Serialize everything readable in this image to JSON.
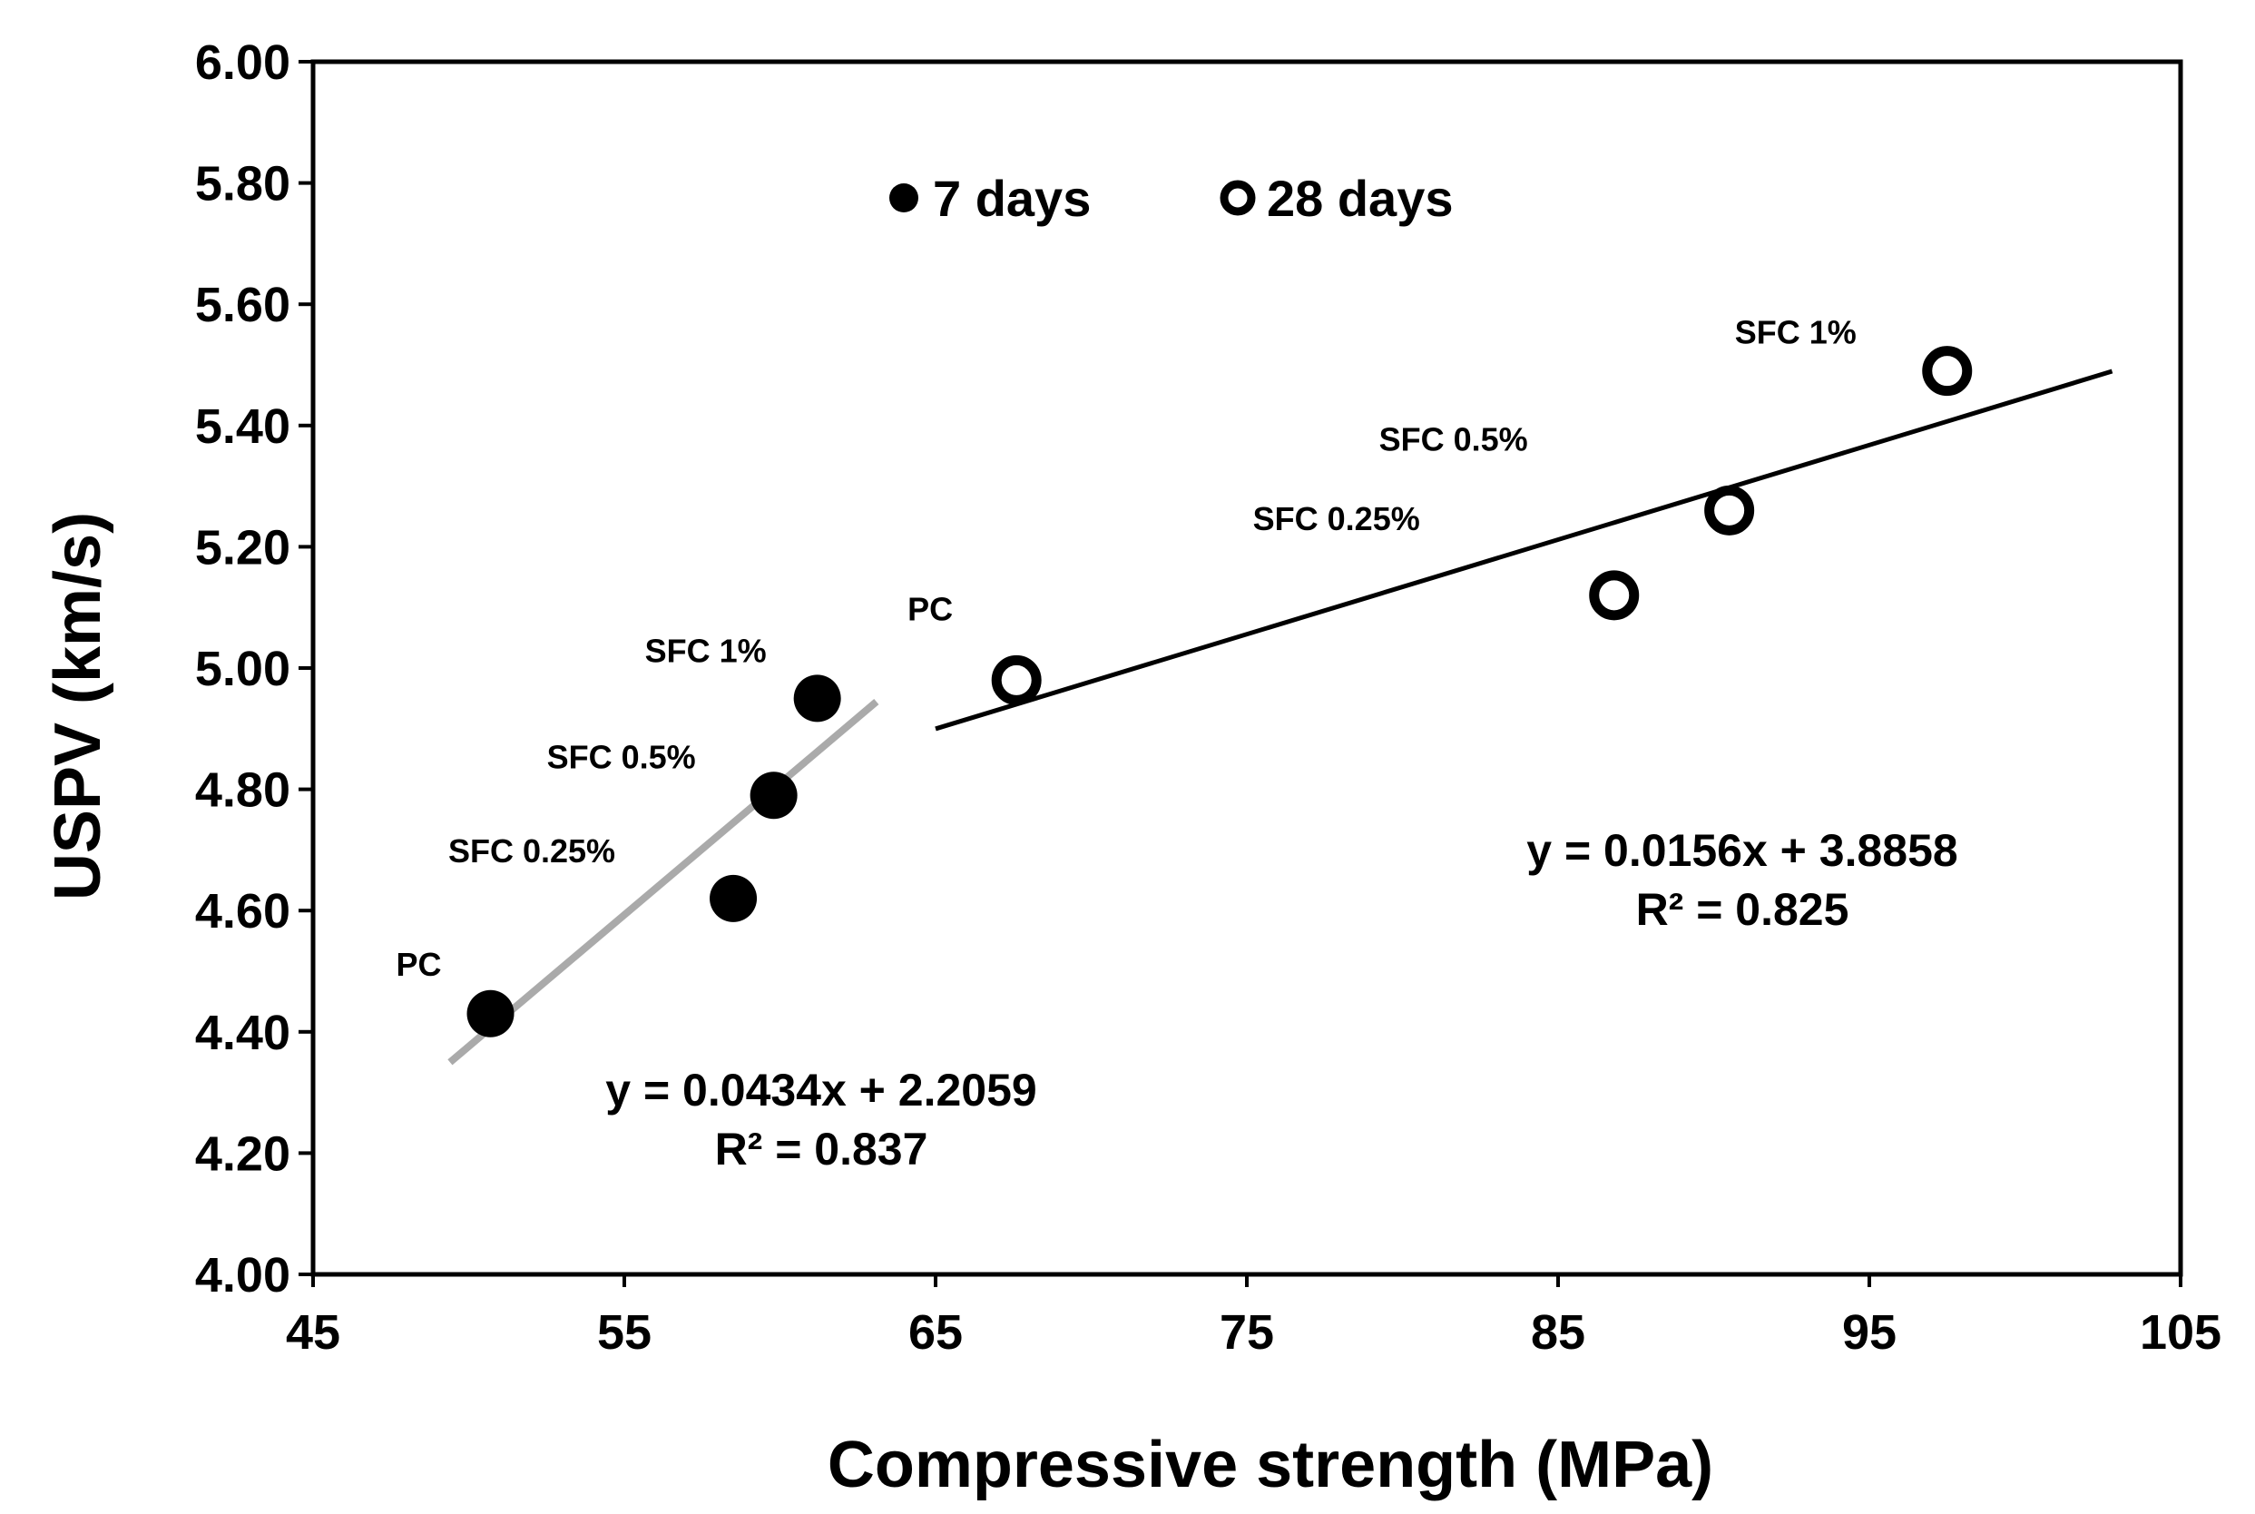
{
  "chart_data": {
    "type": "scatter",
    "title": "",
    "xlabel": "Compressive strength (MPa)",
    "ylabel": "USPV (km/s)",
    "xlim": [
      45,
      105
    ],
    "ylim": [
      4.0,
      6.0
    ],
    "xticks": [
      45,
      55,
      65,
      75,
      85,
      95,
      105
    ],
    "xtick_labels": [
      "45",
      "55",
      "65",
      "75",
      "85",
      "95",
      "105"
    ],
    "yticks": [
      4.0,
      4.2,
      4.4,
      4.6,
      4.8,
      5.0,
      5.2,
      5.4,
      5.6,
      5.8,
      6.0
    ],
    "ytick_labels": [
      "4.00",
      "4.20",
      "4.40",
      "4.60",
      "4.80",
      "5.00",
      "5.20",
      "5.40",
      "5.60",
      "5.80",
      "6.00"
    ],
    "grid": false,
    "legend_position": "top-center",
    "series": [
      {
        "name": "7 days",
        "marker": "filled-circle",
        "color": "#000000",
        "points": [
          {
            "x": 50.7,
            "y": 4.43,
            "label": "PC"
          },
          {
            "x": 58.5,
            "y": 4.62,
            "label": "SFC 0.25%"
          },
          {
            "x": 59.8,
            "y": 4.79,
            "label": "SFC 0.5%"
          },
          {
            "x": 61.2,
            "y": 4.95,
            "label": "SFC 1%"
          }
        ],
        "trendline": {
          "slope": 0.0434,
          "intercept": 2.2059,
          "x_range": [
            49.4,
            63.1
          ],
          "color": "#aaaaaa",
          "equation": "y = 0.0434x + 2.2059",
          "r2": "R² = 0.837"
        }
      },
      {
        "name": "28 days",
        "marker": "hollow-circle",
        "color": "#000000",
        "points": [
          {
            "x": 67.6,
            "y": 4.98,
            "label": "PC"
          },
          {
            "x": 86.8,
            "y": 5.12,
            "label": "SFC 0.25%"
          },
          {
            "x": 90.5,
            "y": 5.26,
            "label": "SFC 0.5%"
          },
          {
            "x": 97.5,
            "y": 5.49,
            "label": "SFC 1%"
          }
        ],
        "trendline": {
          "slope": 0.0156,
          "intercept": 3.8858,
          "x_range": [
            65.0,
            102.8
          ],
          "color": "#000000",
          "equation": "y = 0.0156x + 3.8858",
          "r2": "R² = 0.825"
        }
      }
    ]
  }
}
